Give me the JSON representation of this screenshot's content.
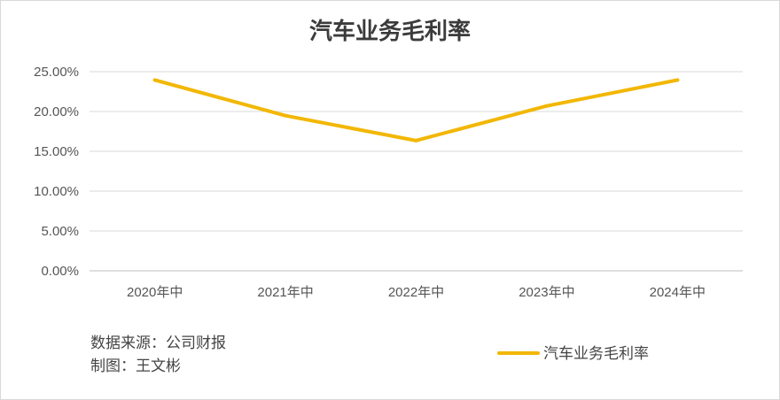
{
  "chart_data": {
    "type": "line",
    "title": "汽车业务毛利率",
    "categories": [
      "2020年中",
      "2021年中",
      "2022年中",
      "2023年中",
      "2024年中"
    ],
    "series": [
      {
        "name": "汽车业务毛利率",
        "values": [
          0.2395,
          0.1948,
          0.1635,
          0.207,
          0.2395
        ]
      }
    ],
    "y_ticks": [
      "0.00%",
      "5.00%",
      "10.00%",
      "15.00%",
      "20.00%",
      "25.00%"
    ],
    "ylim": [
      0,
      0.25
    ],
    "grid": true,
    "legend_position": "bottom-right",
    "line_color": "#F2B705"
  },
  "notes": {
    "source": "数据来源：公司财报",
    "author": "制图：王文彬"
  }
}
